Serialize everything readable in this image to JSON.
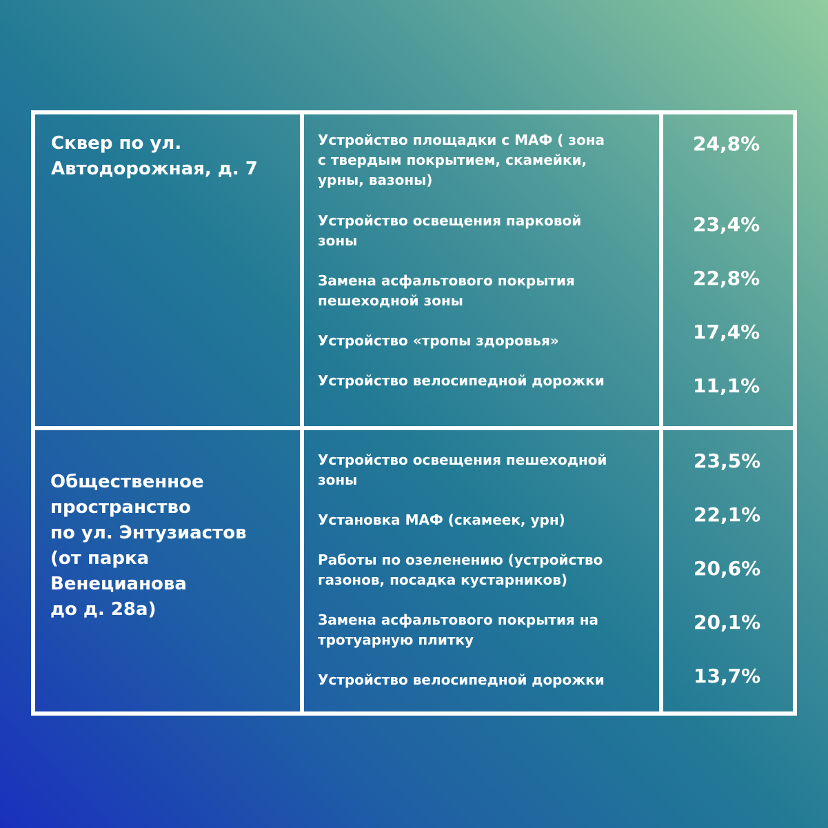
{
  "colors": {
    "line": "#ffffff",
    "text": "#ffffff",
    "gradient_start": "#1a30bd",
    "gradient_end": "#91cc9e"
  },
  "sections": [
    {
      "place": [
        "Сквер по ул.",
        "Автодорожная, д. 7"
      ],
      "items": [
        {
          "lines": [
            "Устройство площадки с МАФ ( зона",
            "с твердым покрытием, скамейки,",
            "урны, вазоны)"
          ],
          "percent": "24,8%"
        },
        {
          "lines": [
            "Устройство освещения парковой",
            "зоны"
          ],
          "percent": "23,4%"
        },
        {
          "lines": [
            "Замена асфальтового покрытия",
            "пешеходной зоны"
          ],
          "percent": "22,8%"
        },
        {
          "lines": [
            "Устройство «тропы здоровья»"
          ],
          "percent": "17,4%"
        },
        {
          "lines": [
            "Устройство велосипедной дорожки"
          ],
          "percent": "11,1%"
        }
      ]
    },
    {
      "place": [
        "Общественное",
        "пространство",
        "по ул. Энтузиастов",
        "(от парка",
        "Венецианова",
        "до д. 28а)"
      ],
      "items": [
        {
          "lines": [
            "Устройство освещения пешеходной",
            "зоны"
          ],
          "percent": "23,5%"
        },
        {
          "lines": [
            "Установка МАФ (скамеек, урн)"
          ],
          "percent": "22,1%"
        },
        {
          "lines": [
            "Работы по озеленению (устройство",
            "газонов, посадка кустарников)"
          ],
          "percent": "20,6%"
        },
        {
          "lines": [
            "Замена асфальтового покрытия на",
            "тротуарную плитку"
          ],
          "percent": "20,1%"
        },
        {
          "lines": [
            "Устройство велосипедной дорожки"
          ],
          "percent": "13,7%"
        }
      ]
    }
  ]
}
